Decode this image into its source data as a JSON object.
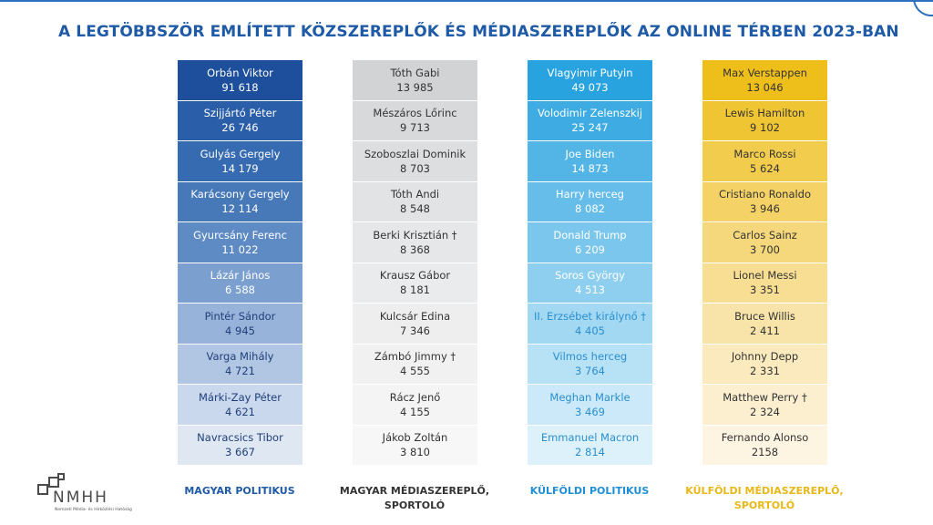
{
  "title": "A LEGTÖBBSZÖR EMLÍTETT KÖZSZEREPLŐK ÉS MÉDIASZEREPLŐK AZ ONLINE TÉRBEN 2023-BAN",
  "logo": {
    "text": "NMHH",
    "subtitle": "Nemzeti Média- és Hírközlési Hatóság"
  },
  "columns": [
    {
      "label_lines": [
        "MAGYAR POLITIKUS"
      ],
      "label_color": "#1f5aa6",
      "rows": [
        {
          "name": "Orbán Viktor",
          "value": "91 618",
          "bg": "#1d4f9c",
          "fg": "#ffffff"
        },
        {
          "name": "Szijjártó Péter",
          "value": "26 746",
          "bg": "#2a5ea8",
          "fg": "#ffffff"
        },
        {
          "name": "Gulyás Gergely",
          "value": "14 179",
          "bg": "#376bb1",
          "fg": "#ffffff"
        },
        {
          "name": "Karácsony Gergely",
          "value": "12 114",
          "bg": "#4779b9",
          "fg": "#ffffff"
        },
        {
          "name": "Gyurcsány Ferenc",
          "value": "11 022",
          "bg": "#5f8bc4",
          "fg": "#ffffff"
        },
        {
          "name": "Lázár János",
          "value": "6 588",
          "bg": "#7b9fcf",
          "fg": "#ffffff"
        },
        {
          "name": "Pintér Sándor",
          "value": "4 945",
          "bg": "#97b3da",
          "fg": "#1f3f7a"
        },
        {
          "name": "Varga Mihály",
          "value": "4 721",
          "bg": "#b1c6e3",
          "fg": "#1f3f7a"
        },
        {
          "name": "Márki-Zay Péter",
          "value": "4 621",
          "bg": "#c9d8ec",
          "fg": "#1f3f7a"
        },
        {
          "name": "Navracsics Tibor",
          "value": "3 667",
          "bg": "#dfe7f3",
          "fg": "#1f3f7a"
        }
      ]
    },
    {
      "label_lines": [
        "MAGYAR MÉDIASZEREPLŐ,",
        "SPORTOLÓ"
      ],
      "label_color": "#333333",
      "rows": [
        {
          "name": "Tóth Gabi",
          "value": "13 985",
          "bg": "#d2d3d5",
          "fg": "#333333"
        },
        {
          "name": "Mészáros Lőrinc",
          "value": "9 713",
          "bg": "#d8d9db",
          "fg": "#333333"
        },
        {
          "name": "Szoboszlai Dominik",
          "value": "8 703",
          "bg": "#dddee0",
          "fg": "#333333"
        },
        {
          "name": "Tóth Andi",
          "value": "8 548",
          "bg": "#e2e3e5",
          "fg": "#333333"
        },
        {
          "name": "Berki Krisztián †",
          "value": "8 368",
          "bg": "#e6e7e8",
          "fg": "#333333"
        },
        {
          "name": "Krausz Gábor",
          "value": "8 181",
          "bg": "#eaebec",
          "fg": "#333333"
        },
        {
          "name": "Kulcsár Edina",
          "value": "7 346",
          "bg": "#eeeeef",
          "fg": "#333333"
        },
        {
          "name": "Zámbó Jimmy †",
          "value": "4 555",
          "bg": "#f1f1f2",
          "fg": "#333333"
        },
        {
          "name": "Rácz Jenő",
          "value": "4 155",
          "bg": "#f4f4f5",
          "fg": "#333333"
        },
        {
          "name": "Jákob Zoltán",
          "value": "3 810",
          "bg": "#f7f7f8",
          "fg": "#333333"
        }
      ]
    },
    {
      "label_lines": [
        "KÜLFÖLDI POLITIKUS"
      ],
      "label_color": "#1f8fd6",
      "rows": [
        {
          "name": "Vlagyimir Putyin",
          "value": "49 073",
          "bg": "#29a3e0",
          "fg": "#ffffff"
        },
        {
          "name": "Volodimir Zelenszkij",
          "value": "25 247",
          "bg": "#3eace3",
          "fg": "#ffffff"
        },
        {
          "name": "Joe Biden",
          "value": "14 873",
          "bg": "#52b5e6",
          "fg": "#ffffff"
        },
        {
          "name": "Harry herceg",
          "value": "8 082",
          "bg": "#66bde9",
          "fg": "#ffffff"
        },
        {
          "name": "Donald Trump",
          "value": "6 209",
          "bg": "#7ac6ec",
          "fg": "#ffffff"
        },
        {
          "name": "Soros György",
          "value": "4 513",
          "bg": "#8ecfef",
          "fg": "#ffffff"
        },
        {
          "name": "II. Erzsébet királynő †",
          "value": "4 405",
          "bg": "#a3d8f2",
          "fg": "#2a8fd0"
        },
        {
          "name": "Vilmos herceg",
          "value": "3 764",
          "bg": "#b7e1f5",
          "fg": "#2a8fd0"
        },
        {
          "name": "Meghan Markle",
          "value": "3 469",
          "bg": "#cbe9f8",
          "fg": "#2a8fd0"
        },
        {
          "name": "Emmanuel Macron",
          "value": "2 814",
          "bg": "#ddf1fa",
          "fg": "#2a8fd0"
        }
      ]
    },
    {
      "label_lines": [
        "KÜLFÖLDI MÉDIASZEREPLŐ,",
        "SPORTOLÓ"
      ],
      "label_color": "#e8b817",
      "rows": [
        {
          "name": "Max Verstappen",
          "value": "13 046",
          "bg": "#eebf1b",
          "fg": "#333333"
        },
        {
          "name": "Lewis Hamilton",
          "value": "9 102",
          "bg": "#f0c534",
          "fg": "#333333"
        },
        {
          "name": "Marco Rossi",
          "value": "5 624",
          "bg": "#f2cc4d",
          "fg": "#333333"
        },
        {
          "name": "Cristiano Ronaldo",
          "value": "3 946",
          "bg": "#f4d265",
          "fg": "#333333"
        },
        {
          "name": "Carlos Sainz",
          "value": "3 700",
          "bg": "#f5d87c",
          "fg": "#333333"
        },
        {
          "name": "Lionel Messi",
          "value": "3 351",
          "bg": "#f7de93",
          "fg": "#333333"
        },
        {
          "name": "Bruce Willis",
          "value": "2 411",
          "bg": "#f8e3a8",
          "fg": "#333333"
        },
        {
          "name": "Johnny Depp",
          "value": "2 331",
          "bg": "#faeabd",
          "fg": "#333333"
        },
        {
          "name": "Matthew Perry †",
          "value": "2 324",
          "bg": "#fbefd0",
          "fg": "#333333"
        },
        {
          "name": "Fernando Alonso",
          "value": "2158",
          "bg": "#fdf5e2",
          "fg": "#333333"
        }
      ]
    }
  ]
}
